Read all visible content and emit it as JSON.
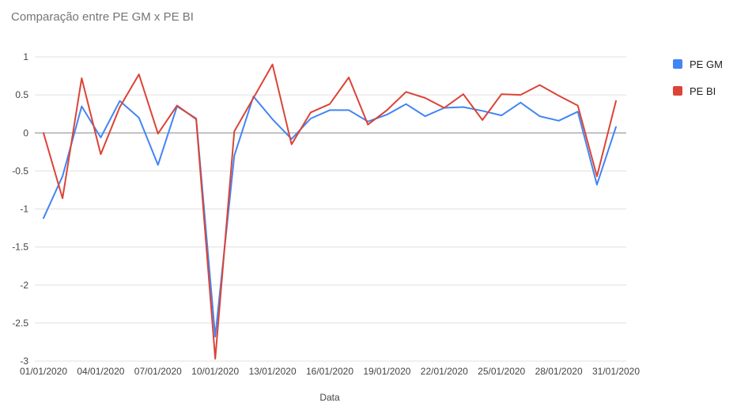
{
  "chart_data": {
    "type": "line",
    "title": "Comparação entre PE GM x PE BI",
    "xlabel": "Data",
    "ylabel": "",
    "ylim": [
      -3,
      1
    ],
    "yticks": [
      "1",
      "0.5",
      "0",
      "-0.5",
      "-1",
      "-1.5",
      "-2",
      "-2.5",
      "-3"
    ],
    "x": [
      "01/01/2020",
      "02/01/2020",
      "03/01/2020",
      "04/01/2020",
      "05/01/2020",
      "06/01/2020",
      "07/01/2020",
      "08/01/2020",
      "09/01/2020",
      "10/01/2020",
      "11/01/2020",
      "12/01/2020",
      "13/01/2020",
      "14/01/2020",
      "15/01/2020",
      "16/01/2020",
      "17/01/2020",
      "18/01/2020",
      "19/01/2020",
      "20/01/2020",
      "21/01/2020",
      "22/01/2020",
      "23/01/2020",
      "24/01/2020",
      "25/01/2020",
      "26/01/2020",
      "27/01/2020",
      "28/01/2020",
      "29/01/2020",
      "30/01/2020",
      "31/01/2020"
    ],
    "xtick_labels": [
      "01/01/2020",
      "04/01/2020",
      "07/01/2020",
      "10/01/2020",
      "13/01/2020",
      "16/01/2020",
      "19/01/2020",
      "22/01/2020",
      "25/01/2020",
      "28/01/2020",
      "31/01/2020"
    ],
    "grid": true,
    "legend_position": "right",
    "series": [
      {
        "name": "PE GM",
        "color": "#4285f4",
        "values": [
          -1.12,
          -0.57,
          0.35,
          -0.06,
          0.42,
          0.2,
          -0.42,
          0.35,
          0.19,
          -2.68,
          -0.3,
          0.48,
          0.18,
          -0.08,
          0.19,
          0.3,
          0.3,
          0.15,
          0.24,
          0.38,
          0.22,
          0.33,
          0.34,
          0.29,
          0.23,
          0.4,
          0.22,
          0.16,
          0.28,
          -0.68,
          0.08
        ]
      },
      {
        "name": "PE BI",
        "color": "#db4437",
        "values": [
          0.0,
          -0.86,
          0.72,
          -0.28,
          0.34,
          0.77,
          -0.01,
          0.36,
          0.18,
          -2.97,
          0.02,
          0.46,
          0.9,
          -0.15,
          0.27,
          0.38,
          0.73,
          0.11,
          0.3,
          0.54,
          0.46,
          0.33,
          0.51,
          0.17,
          0.51,
          0.5,
          0.63,
          0.49,
          0.36,
          -0.57,
          0.42
        ]
      }
    ]
  }
}
